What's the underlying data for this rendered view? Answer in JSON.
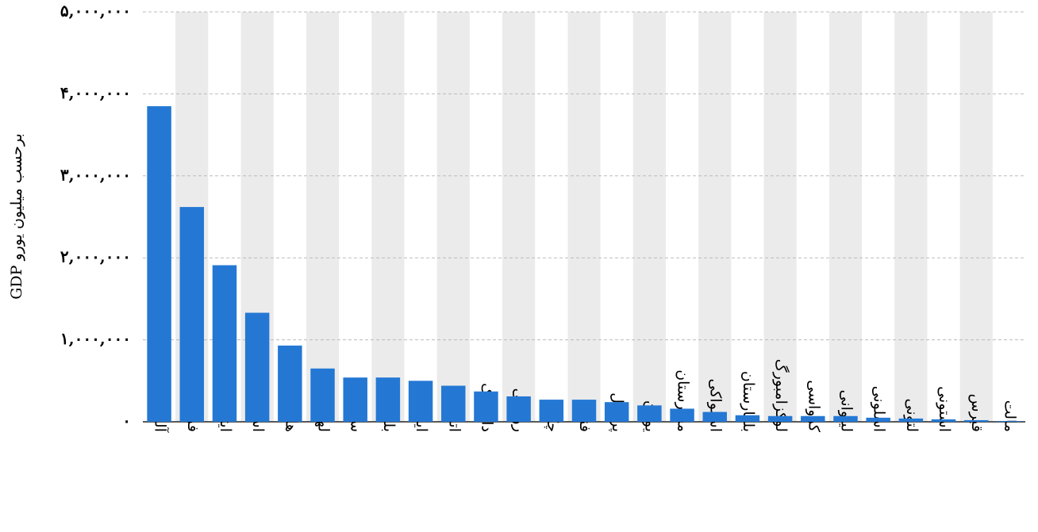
{
  "chart_data": {
    "type": "bar",
    "y_label": "GDP برحسب میلیون یورو",
    "categories": [
      "آلمان",
      "فرانسه",
      "ایتالیا",
      "اسپانیا",
      "هلند",
      "لهستان",
      "سوئد",
      "بلژیک",
      "ایرلند",
      "اتریش",
      "دانمارک",
      "رومانی",
      "چک",
      "فنلاند",
      "پرتغال",
      "یونان",
      "مجارستان",
      "اسلواکی",
      "بلغارستان",
      "لوکزامبورگ",
      "کرواسی",
      "لیتوانی",
      "اسلونی",
      "لتونی",
      "استونی",
      "قبرس",
      "مالت"
    ],
    "values": [
      3850000,
      2620000,
      1910000,
      1330000,
      930000,
      650000,
      540000,
      540000,
      500000,
      440000,
      370000,
      310000,
      270000,
      270000,
      240000,
      200000,
      160000,
      120000,
      80000,
      70000,
      70000,
      70000,
      50000,
      40000,
      30000,
      20000,
      10000
    ],
    "color": "#2478d4",
    "band_color": "#ebebeb",
    "grid": true,
    "ylim": [
      0,
      5000000
    ],
    "yticks": [
      {
        "value": 0,
        "label": "۰"
      },
      {
        "value": 1000000,
        "label": "۱,۰۰۰,۰۰۰"
      },
      {
        "value": 2000000,
        "label": "۲,۰۰۰,۰۰۰"
      },
      {
        "value": 3000000,
        "label": "۳,۰۰۰,۰۰۰"
      },
      {
        "value": 4000000,
        "label": "۴,۰۰۰,۰۰۰"
      },
      {
        "value": 5000000,
        "label": "۵,۰۰۰,۰۰۰"
      }
    ]
  }
}
